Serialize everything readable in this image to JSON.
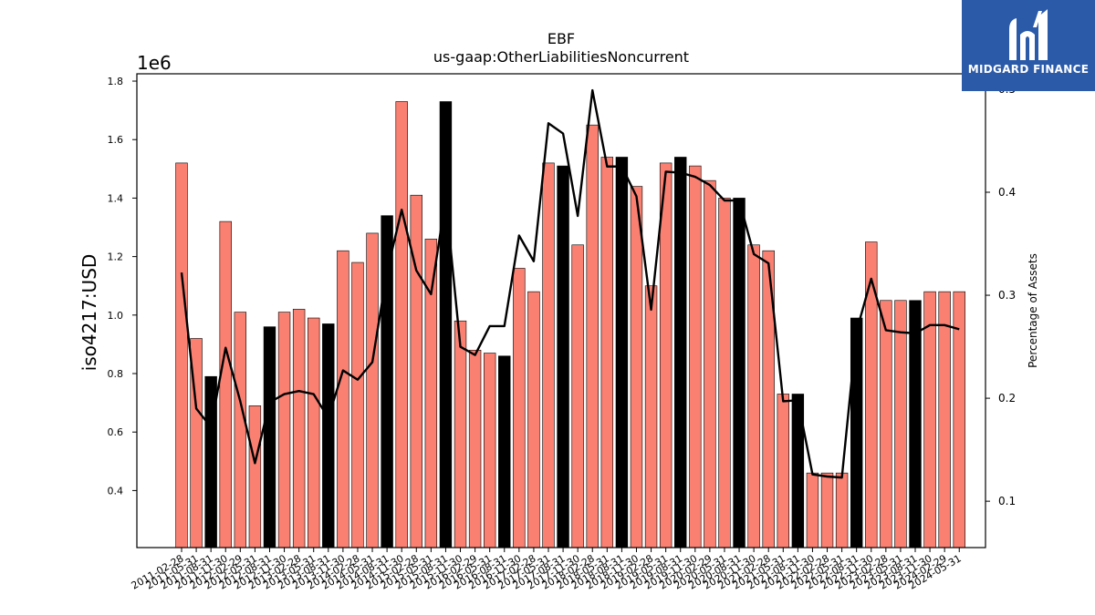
{
  "brand": {
    "name": "MIDGARD FINANCE",
    "logo_icon": "midgard-m-icon",
    "bg_color": "#2b5aa8"
  },
  "chart_data": {
    "type": "bar",
    "title": "EBF",
    "subtitle": "us-gaap:OtherLiabilitiesNoncurrent",
    "ylabel": "iso4217:USD",
    "y_multiplier": "1e6",
    "y2label": "Percentage of Assets",
    "ylim": [
      0.205,
      1.825
    ],
    "y2lim": [
      0.055,
      0.515
    ],
    "yticks": [
      "0.4",
      "0.6",
      "0.8",
      "1.0",
      "1.2",
      "1.4",
      "1.6",
      "1.8"
    ],
    "y2ticks": [
      "0.1",
      "0.2",
      "0.3",
      "0.4",
      "0.5"
    ],
    "colors": {
      "bar": "#fa8072",
      "highlight_bar": "#000000",
      "line": "#000000"
    },
    "grid": false,
    "categories": [
      "2011-02-28",
      "2011-05-31",
      "2011-08-31",
      "2011-11-30",
      "2012-02-29",
      "2012-05-31",
      "2012-08-31",
      "2012-11-30",
      "2013-02-28",
      "2013-05-31",
      "2013-08-31",
      "2013-11-30",
      "2014-02-28",
      "2014-05-31",
      "2014-08-31",
      "2014-11-30",
      "2015-02-28",
      "2015-05-31",
      "2015-08-31",
      "2015-11-30",
      "2016-02-29",
      "2016-05-31",
      "2016-08-31",
      "2016-11-30",
      "2017-02-28",
      "2017-05-31",
      "2017-08-31",
      "2017-11-30",
      "2018-02-28",
      "2018-05-31",
      "2018-08-31",
      "2018-11-30",
      "2019-02-28",
      "2019-05-31",
      "2019-08-31",
      "2019-11-30",
      "2020-02-29",
      "2020-05-31",
      "2020-08-31",
      "2020-11-30",
      "2021-02-28",
      "2021-05-31",
      "2021-08-31",
      "2021-11-30",
      "2022-02-28",
      "2022-05-31",
      "2022-08-31",
      "2022-11-30",
      "2023-02-28",
      "2023-05-31",
      "2023-08-31",
      "2023-11-30",
      "2024-02-29",
      "2024-05-31"
    ],
    "values": [
      1.52,
      0.92,
      0.79,
      1.32,
      1.01,
      0.69,
      0.96,
      1.01,
      1.02,
      0.99,
      0.97,
      1.22,
      1.18,
      1.28,
      1.34,
      1.73,
      1.41,
      1.26,
      1.73,
      0.98,
      0.88,
      0.87,
      0.86,
      1.16,
      1.08,
      1.52,
      1.51,
      1.24,
      1.65,
      1.54,
      1.54,
      1.44,
      1.1,
      1.52,
      1.54,
      1.51,
      1.46,
      1.4,
      1.4,
      1.24,
      1.22,
      0.73,
      0.73,
      0.46,
      0.46,
      0.46,
      0.99,
      1.25,
      1.05,
      1.05,
      1.05,
      1.08,
      1.08,
      1.08
    ],
    "highlight": [
      0,
      0,
      1,
      0,
      0,
      0,
      1,
      0,
      0,
      0,
      1,
      0,
      0,
      0,
      1,
      0,
      0,
      0,
      1,
      0,
      0,
      0,
      1,
      0,
      0,
      0,
      1,
      0,
      0,
      0,
      1,
      0,
      0,
      0,
      1,
      0,
      0,
      0,
      1,
      0,
      0,
      0,
      1,
      0,
      0,
      0,
      1,
      0,
      0,
      0,
      1,
      0,
      0,
      0
    ],
    "series": [
      {
        "values": [
          0.322,
          0.19,
          0.172,
          0.249,
          0.197,
          0.137,
          0.196,
          0.204,
          0.207,
          0.204,
          0.181,
          0.227,
          0.218,
          0.235,
          0.323,
          0.383,
          0.324,
          0.301,
          0.394,
          0.25,
          0.242,
          0.27,
          0.27,
          0.358,
          0.333,
          0.467,
          0.457,
          0.377,
          0.499,
          0.425,
          0.425,
          0.396,
          0.286,
          0.42,
          0.419,
          0.415,
          0.407,
          0.392,
          0.392,
          0.34,
          0.331,
          0.197,
          0.198,
          0.126,
          0.124,
          0.123,
          0.265,
          0.316,
          0.266,
          0.264,
          0.263,
          0.271,
          0.271,
          0.267
        ]
      }
    ]
  }
}
